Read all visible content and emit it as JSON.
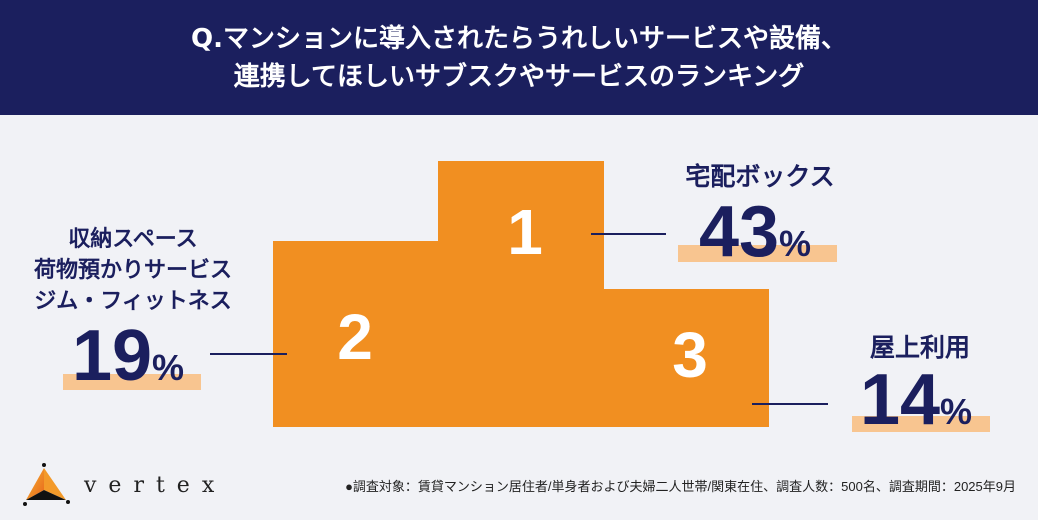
{
  "header": {
    "line1": "Q.マンションに導入されたらうれしいサービスや設備、",
    "line2": "連携してほしいサブスクやサービスのランキング"
  },
  "colors": {
    "navy": "#1b1f5e",
    "orange": "#f18f21",
    "highlight": "#f8c590",
    "background": "#f1f2f6"
  },
  "chart_data": {
    "type": "bar",
    "title": "Q.マンションに導入されたらうれしいサービスや設備、連携してほしいサブスクやサービスのランキング",
    "categories": [
      "1",
      "2",
      "3"
    ],
    "items": [
      {
        "rank": "1",
        "labels": [
          "宅配ボックス"
        ],
        "value": 43,
        "unit": "%"
      },
      {
        "rank": "2",
        "labels": [
          "収納スペース",
          "荷物預かりサービス",
          "ジム・フィットネス"
        ],
        "value": 19,
        "unit": "%"
      },
      {
        "rank": "3",
        "labels": [
          "屋上利用"
        ],
        "value": 14,
        "unit": "%"
      }
    ],
    "values": [
      43,
      19,
      14
    ]
  },
  "logo": {
    "text": "vertex"
  },
  "footnote": "●調査対象：賃貸マンション居住者/単身者および夫婦二人世帯/関東在住、調査人数：500名、調査期間：2025年9月"
}
